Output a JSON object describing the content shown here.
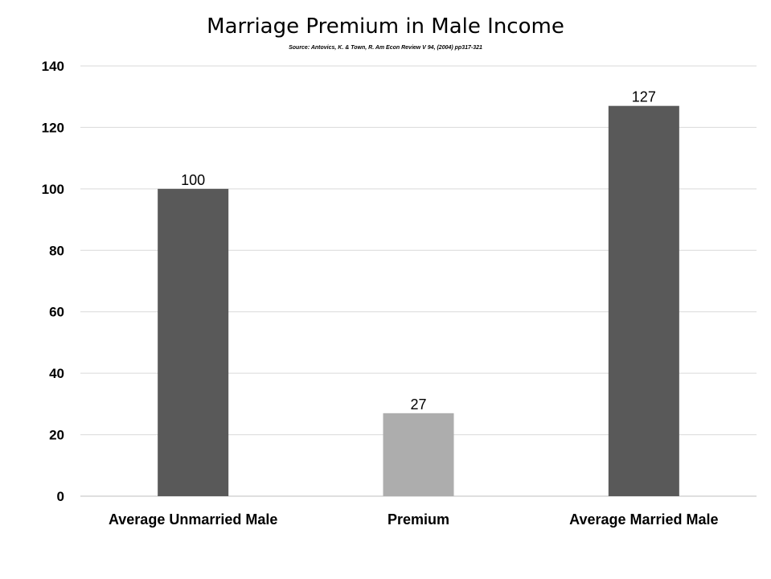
{
  "chart_data": {
    "type": "bar",
    "title": "Marriage Premium in Male Income",
    "subtitle": "Source: Antovics, K. & Town, R. Am Econ Review V 94, (2004) pp317-321",
    "categories": [
      "Average Unmarried Male",
      "Premium",
      "Average Married Male"
    ],
    "values": [
      100,
      27,
      127
    ],
    "data_labels": [
      "100",
      "27",
      "127"
    ],
    "bar_colors": [
      "#595959",
      "#adadad",
      "#595959"
    ],
    "ylim": [
      0,
      140
    ],
    "yticks": [
      0,
      20,
      40,
      60,
      80,
      100,
      120,
      140
    ],
    "ytick_labels": [
      "0",
      "20",
      "40",
      "60",
      "80",
      "100",
      "120",
      "140"
    ],
    "grid": true,
    "grid_color": "#d9d9d9",
    "legend": "none"
  }
}
